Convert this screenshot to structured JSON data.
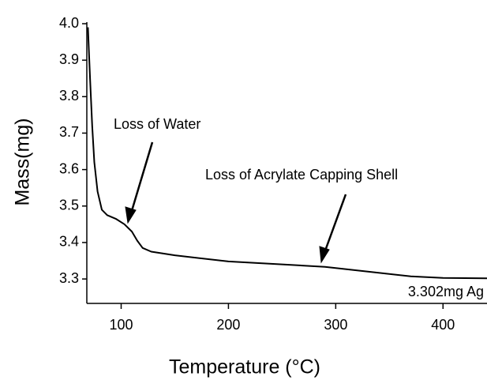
{
  "chart_data": {
    "type": "line",
    "xlabel": "Temperature (°C)",
    "ylabel": "Mass(mg)",
    "annotations": [
      "Loss of Water",
      "Loss of Acrylate Capping Shell",
      "3.302mg Ag"
    ],
    "x": [
      69,
      71,
      73,
      75,
      78,
      82,
      87,
      95,
      103,
      110,
      115,
      120,
      128,
      150,
      200,
      250,
      290,
      330,
      370,
      400,
      441
    ],
    "values": [
      3.99,
      3.85,
      3.72,
      3.62,
      3.54,
      3.49,
      3.475,
      3.465,
      3.45,
      3.43,
      3.405,
      3.385,
      3.375,
      3.365,
      3.348,
      3.34,
      3.333,
      3.32,
      3.307,
      3.303,
      3.302
    ],
    "color": "#000000",
    "xlim": [
      68,
      441
    ],
    "xticks": [
      100,
      200,
      300,
      400
    ],
    "ylim": [
      3.233,
      4.0
    ],
    "yticks": [
      {
        "value": 3.3,
        "label": "3.3"
      },
      {
        "value": 3.4,
        "label": "3.4"
      },
      {
        "value": 3.5,
        "label": "3.5"
      },
      {
        "value": 3.6,
        "label": "3.6"
      },
      {
        "value": 3.7,
        "label": "3.7"
      },
      {
        "value": 3.8,
        "label": "3.8"
      },
      {
        "value": 3.9,
        "label": "3.9"
      },
      {
        "value": 4.0,
        "label": "4.0"
      }
    ]
  }
}
